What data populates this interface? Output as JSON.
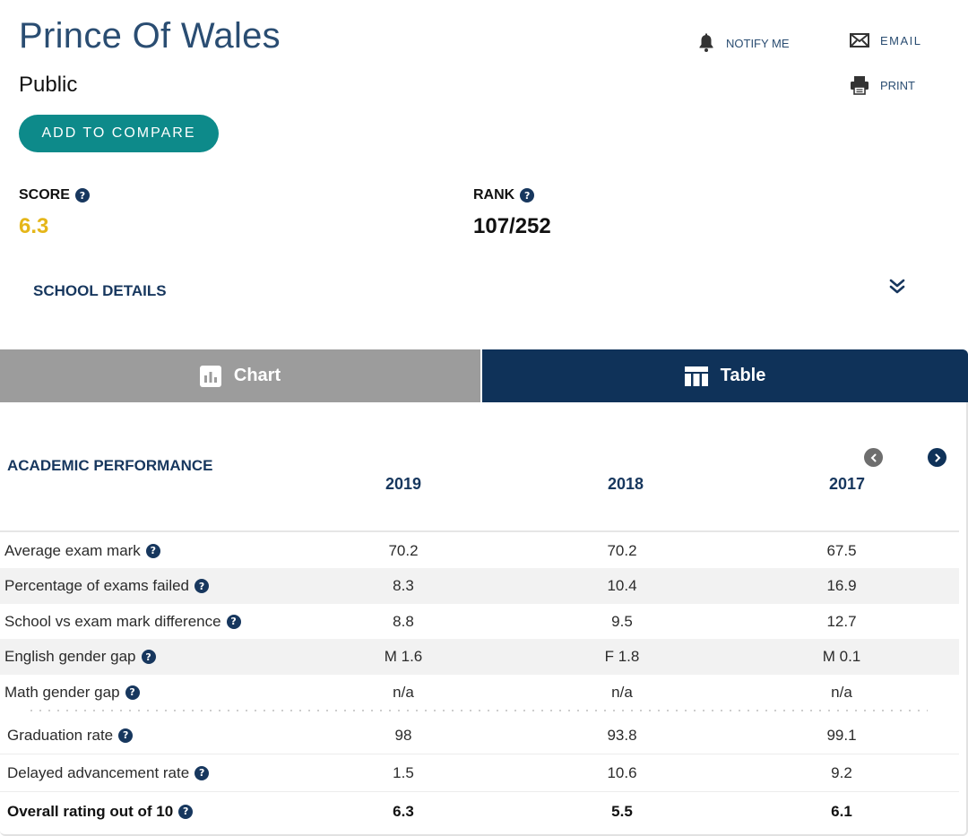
{
  "header": {
    "title": "Prince Of Wales",
    "subtitle": "Public",
    "compare_label": "ADD TO COMPARE",
    "notify_label": "NOTIFY ME",
    "email_label": "EMAIL",
    "print_label": "PRINT"
  },
  "stats": {
    "score_label": "SCORE",
    "score_value": "6.3",
    "rank_label": "RANK",
    "rank_value": "107/252",
    "help_glyph": "?"
  },
  "details": {
    "label": "SCHOOL DETAILS"
  },
  "tabs": {
    "chart_label": "Chart",
    "table_label": "Table",
    "active": "Table"
  },
  "table": {
    "section_title": "ACADEMIC PERFORMANCE",
    "years": [
      "2019",
      "2018",
      "2017"
    ],
    "rows": [
      {
        "label": "Average exam mark",
        "values": [
          "70.2",
          "70.2",
          "67.5"
        ]
      },
      {
        "label": "Percentage of exams failed",
        "values": [
          "8.3",
          "10.4",
          "16.9"
        ]
      },
      {
        "label": "School vs exam mark difference",
        "values": [
          "8.8",
          "9.5",
          "12.7"
        ]
      },
      {
        "label": "English gender gap",
        "values": [
          "M 1.6",
          "F 1.8",
          "M 0.1"
        ]
      },
      {
        "label": "Math gender gap",
        "values": [
          "n/a",
          "n/a",
          "n/a"
        ]
      },
      {
        "label": "Graduation rate",
        "values": [
          "98",
          "93.8",
          "99.1"
        ]
      },
      {
        "label": "Delayed advancement rate",
        "values": [
          "1.5",
          "10.6",
          "9.2"
        ]
      },
      {
        "label": "Overall rating out of 10",
        "values": [
          "6.3",
          "5.5",
          "6.1"
        ]
      }
    ]
  },
  "colors": {
    "brand_navy": "#0f3259",
    "teal": "#0d8a8a",
    "score_gold": "#e5b619",
    "tab_inactive": "#9c9c9c"
  },
  "icons": {
    "notify": "bell-icon",
    "email": "envelope-icon",
    "print": "printer-icon",
    "help": "help-icon",
    "details": "double-chevron-down-icon",
    "chart_tab": "bar-chart-icon",
    "table_tab": "table-icon",
    "prev": "chevron-left-icon",
    "next": "chevron-right-icon"
  }
}
